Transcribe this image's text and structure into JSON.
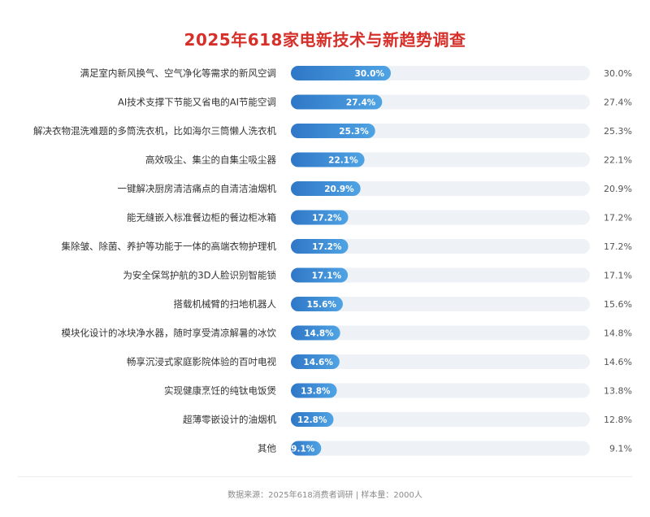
{
  "chart_data": {
    "type": "bar",
    "orientation": "horizontal",
    "title": "2025年618家电新技术与新趋势调查",
    "xlim": [
      0,
      100
    ],
    "grid": false,
    "categories": [
      "满足室内新风换气、空气净化等需求的新风空调",
      "AI技术支撑下节能又省电的AI节能空调",
      "解决衣物混洗难题的多筒洗衣机，比如海尔三筒懒人洗衣机",
      "高效吸尘、集尘的自集尘吸尘器",
      "一键解决厨房清洁痛点的自清洁油烟机",
      "能无缝嵌入标准餐边柜的餐边柜冰箱",
      "集除皱、除菌、养护等功能于一体的高端衣物护理机",
      "为安全保驾护航的3D人脸识别智能锁",
      "搭载机械臂的扫地机器人",
      "模块化设计的冰块净水器，随时享受清凉解暑的冰饮",
      "畅享沉浸式家庭影院体验的百吋电视",
      "实现健康烹饪的纯钛电饭煲",
      "超薄零嵌设计的油烟机",
      "其他"
    ],
    "values": [
      30.0,
      27.4,
      25.3,
      22.1,
      20.9,
      17.2,
      17.2,
      17.1,
      15.6,
      14.8,
      14.6,
      13.8,
      12.8,
      9.1
    ],
    "value_labels": [
      "30.0%",
      "27.4%",
      "25.3%",
      "22.1%",
      "20.9%",
      "17.2%",
      "17.2%",
      "17.1%",
      "15.6%",
      "14.8%",
      "14.6%",
      "13.8%",
      "12.8%",
      "9.1%"
    ],
    "source": "数据来源：2025年618消费者调研 | 样本量：2000人"
  },
  "colors": {
    "title": "#d6302a",
    "bar_start": "#2f77c7",
    "bar_end": "#4fa3e3",
    "track": "#eef2f7",
    "label": "#333333",
    "right_value": "#555555"
  }
}
